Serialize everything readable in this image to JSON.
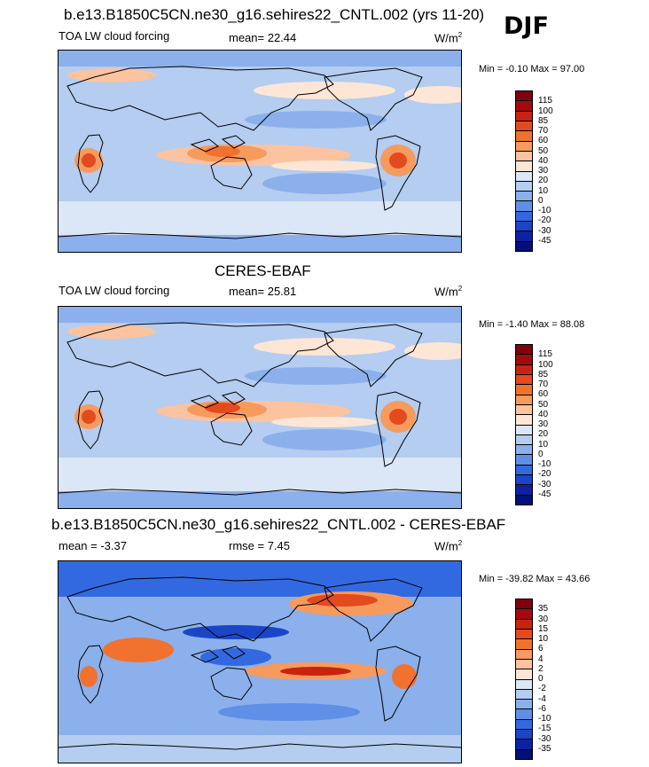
{
  "season": "DJF",
  "panels": [
    {
      "title": "b.e13.B1850C5CN.ne30_g16.sehires22_CNTL.002 (yrs 11-20)",
      "variable": "TOA LW cloud forcing",
      "mean_label": "mean=  22.44",
      "mean": 22.44,
      "units": "W/m",
      "units_sup": "2",
      "minmax": "Min =  -0.10 Max =  97.00",
      "min": -0.1,
      "max": 97.0,
      "colorbar_labels": [
        "115",
        "100",
        "85",
        "70",
        "60",
        "50",
        "40",
        "30",
        "20",
        "10",
        "0",
        "-10",
        "-20",
        "-30",
        "-45"
      ]
    },
    {
      "title": "CERES-EBAF",
      "variable": "TOA LW cloud forcing",
      "mean_label": "mean=  25.81",
      "mean": 25.81,
      "units": "W/m",
      "units_sup": "2",
      "minmax": "Min =  -1.40 Max =  88.08",
      "min": -1.4,
      "max": 88.08,
      "colorbar_labels": [
        "115",
        "100",
        "85",
        "70",
        "60",
        "50",
        "40",
        "30",
        "20",
        "10",
        "0",
        "-10",
        "-20",
        "-30",
        "-45"
      ]
    },
    {
      "title": "b.e13.B1850C5CN.ne30_g16.sehires22_CNTL.002 - CERES-EBAF",
      "variable": "mean =  -3.37",
      "mean": -3.37,
      "rmse_label": "rmse =   7.45",
      "rmse": 7.45,
      "units": "W/m",
      "units_sup": "2",
      "minmax": "Min = -39.82 Max =  43.66",
      "min": -39.82,
      "max": 43.66,
      "colorbar_labels": [
        "35",
        "30",
        "15",
        "10",
        "6",
        "4",
        "2",
        "0",
        "-2",
        "-4",
        "-6",
        "-10",
        "-15",
        "-30",
        "-35"
      ]
    }
  ],
  "colors": {
    "field": [
      "#80000d",
      "#a40a0c",
      "#c8230f",
      "#e34a1e",
      "#f0722e",
      "#f79a5e",
      "#fcc3a0",
      "#fde6d6",
      "#dbe6f6",
      "#b4cdf0",
      "#8bb0eb",
      "#5f8fe6",
      "#3369e0",
      "#1a45c8",
      "#0c22a0",
      "#040f78"
    ],
    "diff": [
      "#80000d",
      "#a40a0c",
      "#c8230f",
      "#e34a1e",
      "#f0722e",
      "#f79a5e",
      "#fcc3a0",
      "#fde6d6",
      "#dbe6f6",
      "#b4cdf0",
      "#8bb0eb",
      "#5f8fe6",
      "#3369e0",
      "#1a45c8",
      "#0c22a0",
      "#040f78"
    ]
  },
  "chart_data": [
    {
      "type": "heatmap",
      "title": "b.e13.B1850C5CN.ne30_g16.sehires22_CNTL.002 (yrs 11-20)",
      "subtitle": "TOA LW cloud forcing",
      "season": "DJF",
      "units": "W/m2",
      "mean": 22.44,
      "min": -0.1,
      "max": 97.0,
      "contour_levels": [
        -45,
        -30,
        -20,
        -10,
        0,
        10,
        20,
        30,
        40,
        50,
        60,
        70,
        85,
        100,
        115
      ]
    },
    {
      "type": "heatmap",
      "title": "CERES-EBAF",
      "subtitle": "TOA LW cloud forcing",
      "season": "DJF",
      "units": "W/m2",
      "mean": 25.81,
      "min": -1.4,
      "max": 88.08,
      "contour_levels": [
        -45,
        -30,
        -20,
        -10,
        0,
        10,
        20,
        30,
        40,
        50,
        60,
        70,
        85,
        100,
        115
      ]
    },
    {
      "type": "heatmap",
      "title": "b.e13.B1850C5CN.ne30_g16.sehires22_CNTL.002 - CERES-EBAF",
      "season": "DJF",
      "units": "W/m2",
      "mean": -3.37,
      "rmse": 7.45,
      "min": -39.82,
      "max": 43.66,
      "contour_levels": [
        -35,
        -30,
        -15,
        -10,
        -6,
        -4,
        -2,
        0,
        2,
        4,
        6,
        10,
        15,
        30,
        35
      ]
    }
  ]
}
